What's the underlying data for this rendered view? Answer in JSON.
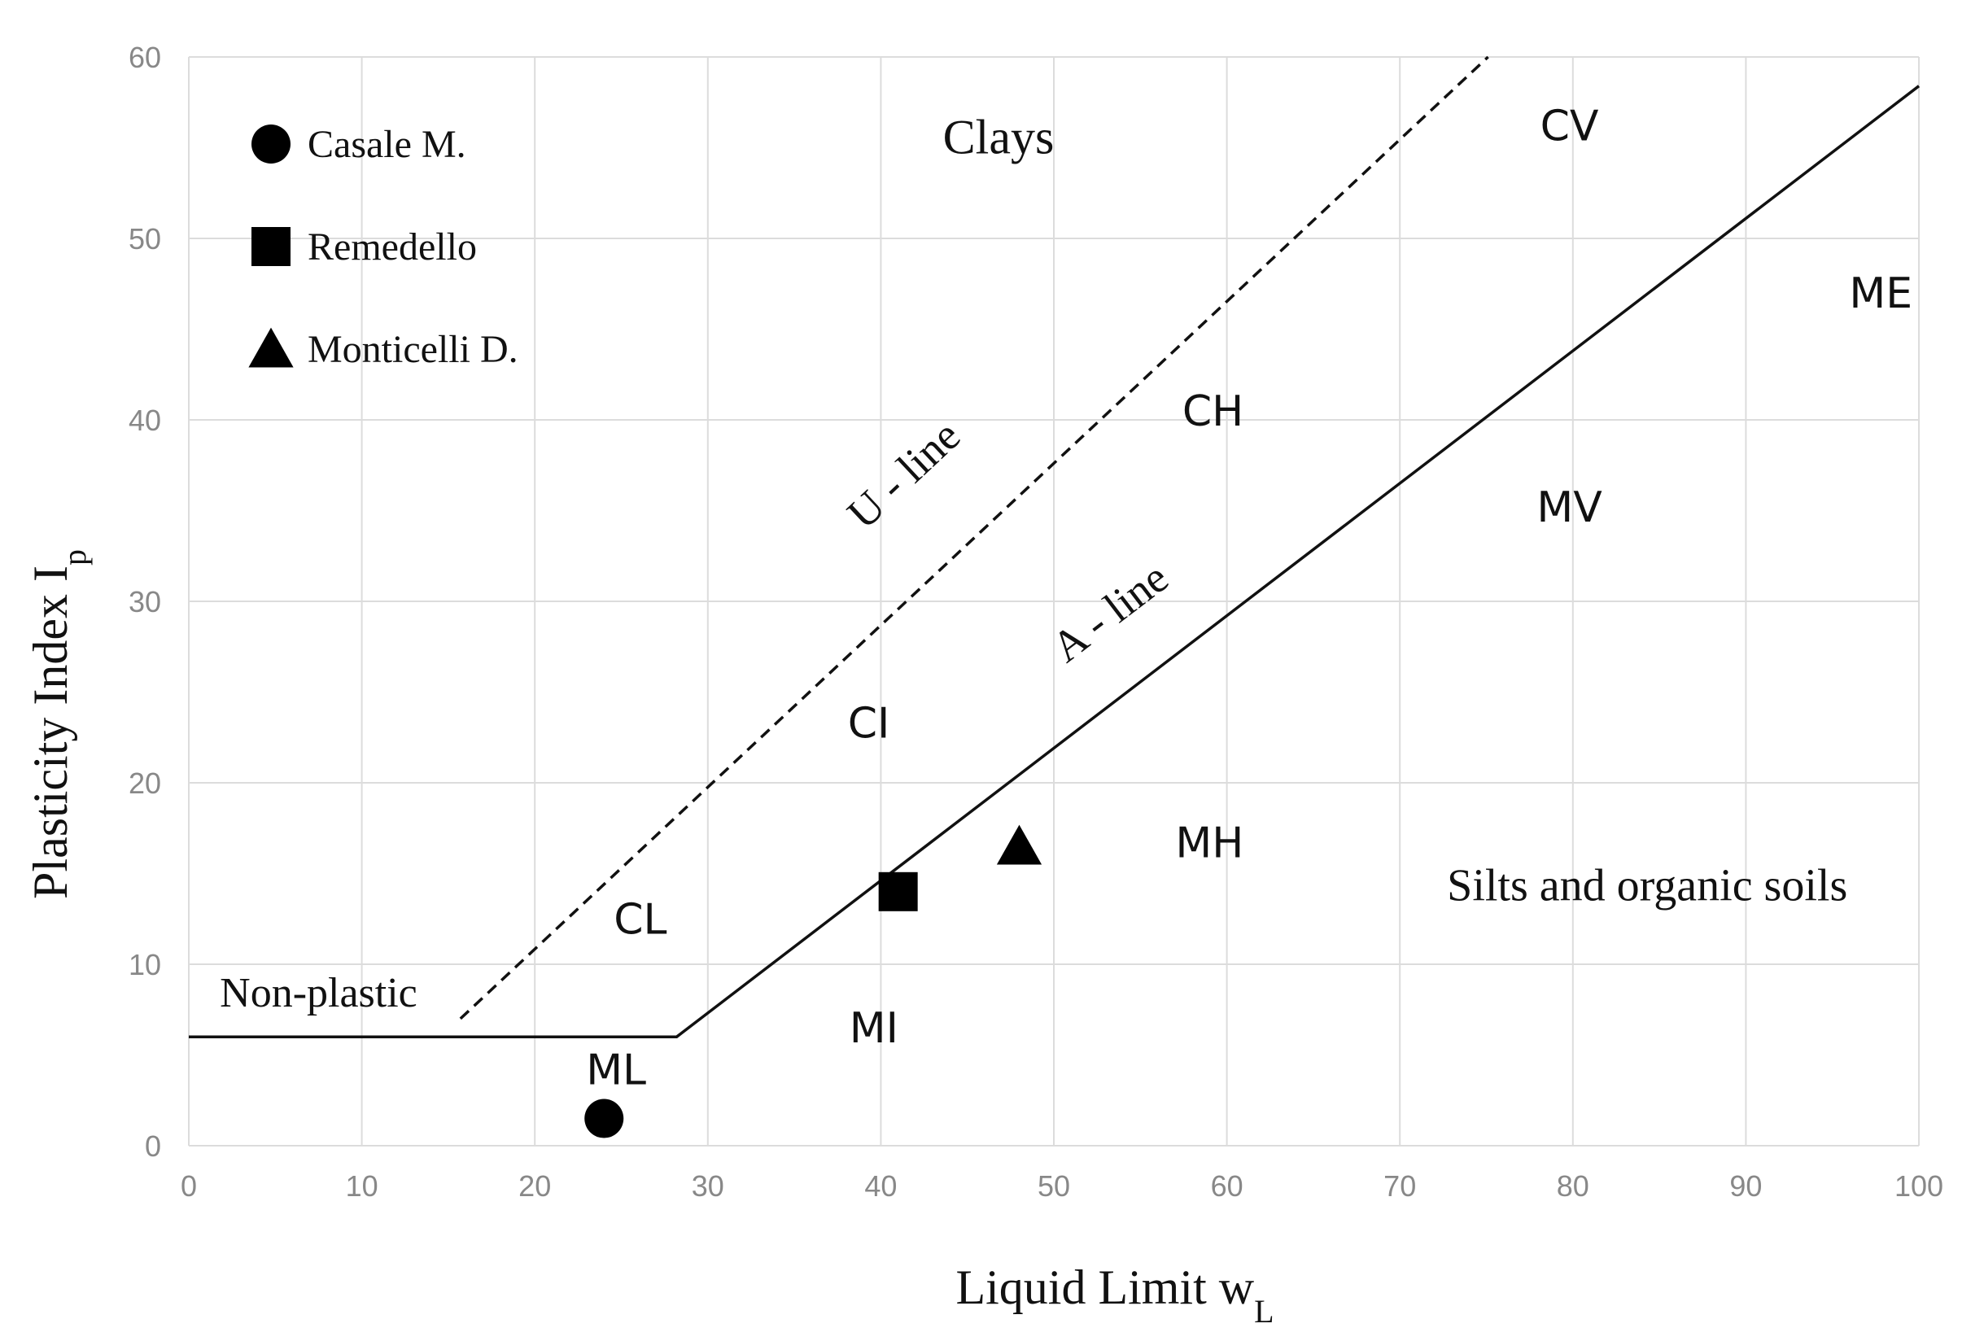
{
  "chart_data": {
    "type": "scatter",
    "xlabel": "Liquid Limit w",
    "xlabel_sub": "L",
    "ylabel": "Plasticity Index I",
    "ylabel_sub": "p",
    "xlim": [
      0,
      100
    ],
    "ylim": [
      0,
      60
    ],
    "x_ticks": [
      0,
      10,
      20,
      30,
      40,
      50,
      60,
      70,
      80,
      90,
      100
    ],
    "y_ticks": [
      0,
      10,
      20,
      30,
      40,
      50,
      60
    ],
    "grid": true,
    "legend_position": "top-left",
    "series": [
      {
        "name": "Casale M.",
        "marker": "circle",
        "x": [
          24
        ],
        "y": [
          1.5
        ]
      },
      {
        "name": "Remedello",
        "marker": "square",
        "x": [
          41
        ],
        "y": [
          14
        ]
      },
      {
        "name": "Monticelli D.",
        "marker": "triangle",
        "x": [
          48
        ],
        "y": [
          16.5
        ]
      }
    ],
    "lines": [
      {
        "name": "A - line",
        "style": "solid",
        "points": [
          [
            0,
            6
          ],
          [
            28.2,
            6
          ],
          [
            100,
            58.4
          ]
        ]
      },
      {
        "name": "U - line",
        "style": "dashed",
        "points": [
          [
            15.7,
            7
          ],
          [
            75.1,
            60
          ]
        ]
      }
    ],
    "zone_labels": [
      {
        "text": "CV",
        "x": 79.8,
        "y": 56.2
      },
      {
        "text": "ME",
        "x": 97.8,
        "y": 47.0
      },
      {
        "text": "CH",
        "x": 59.2,
        "y": 40.5
      },
      {
        "text": "MV",
        "x": 79.8,
        "y": 35.2
      },
      {
        "text": "CI",
        "x": 39.3,
        "y": 23.3
      },
      {
        "text": "MH",
        "x": 59.0,
        "y": 16.7
      },
      {
        "text": "CL",
        "x": 26.1,
        "y": 12.5
      },
      {
        "text": "MI",
        "x": 39.6,
        "y": 6.5
      },
      {
        "text": "ML",
        "x": 24.7,
        "y": 4.2
      }
    ],
    "text_labels": [
      {
        "text": "Clays",
        "x": 46.8,
        "y": 55.3
      },
      {
        "text": "Silts and organic soils",
        "x": 84.3,
        "y": 14.1
      },
      {
        "text": "Non-plastic",
        "x": 7.5,
        "y": 8.2
      },
      {
        "text": "U - line",
        "x": 41.5,
        "y": 36.8
      },
      {
        "text": "A - line",
        "x": 53.4,
        "y": 29.2
      }
    ]
  }
}
